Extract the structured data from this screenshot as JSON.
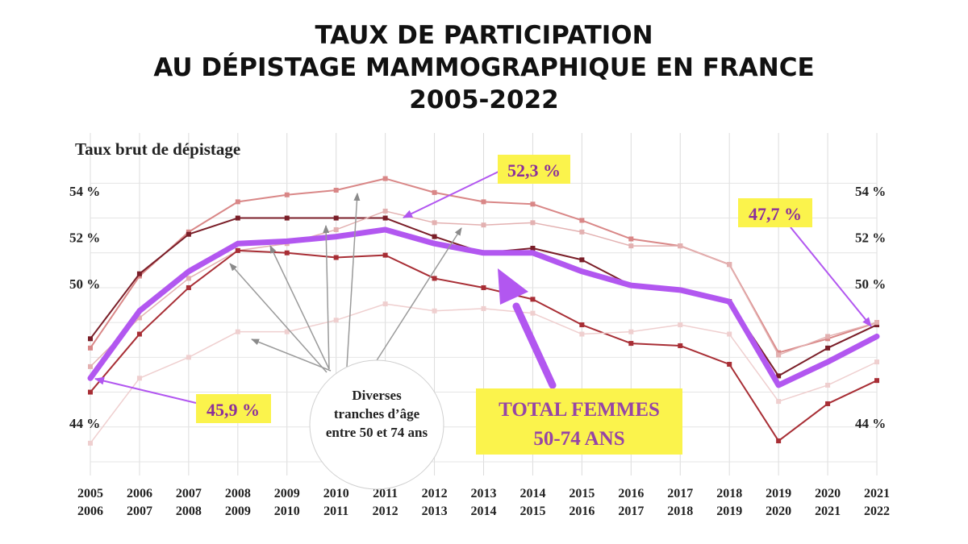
{
  "title": {
    "line1": "TAUX DE PARTICIPATION",
    "line2": "AU DÉPISTAGE MAMMOGRAPHIQUE EN FRANCE",
    "line3": "2005-2022"
  },
  "chart_data": {
    "type": "line",
    "ylabel": "Taux brut de dépistage",
    "yticks_left": [
      "54 %",
      "52 %",
      "50 %",
      "44 %"
    ],
    "yticks_right": [
      "54 %",
      "52 %",
      "50 %",
      "44 %"
    ],
    "ytick_values": [
      54,
      52,
      50,
      44
    ],
    "ylim": [
      42.5,
      55.5
    ],
    "categories": [
      [
        "2005",
        "2006"
      ],
      [
        "2006",
        "2007"
      ],
      [
        "2007",
        "2008"
      ],
      [
        "2008",
        "2009"
      ],
      [
        "2009",
        "2010"
      ],
      [
        "2010",
        "2011"
      ],
      [
        "2011",
        "2012"
      ],
      [
        "2012",
        "2013"
      ],
      [
        "2013",
        "2014"
      ],
      [
        "2014",
        "2015"
      ],
      [
        "2015",
        "2016"
      ],
      [
        "2016",
        "2017"
      ],
      [
        "2017",
        "2018"
      ],
      [
        "2018",
        "2019"
      ],
      [
        "2019",
        "2020"
      ],
      [
        "2020",
        "2021"
      ],
      [
        "2021",
        "2022"
      ]
    ],
    "grid": true,
    "series": [
      {
        "color": "#d98787",
        "width": 2,
        "values": [
          47.2,
          50.3,
          52.2,
          53.5,
          53.8,
          54.0,
          54.5,
          53.9,
          53.5,
          53.4,
          52.7,
          51.9,
          51.6,
          50.8,
          47.0,
          47.6,
          48.3
        ]
      },
      {
        "color": "#7a1e28",
        "width": 2,
        "values": [
          47.6,
          50.4,
          52.1,
          52.8,
          52.8,
          52.8,
          52.8,
          52.0,
          51.3,
          51.5,
          51.0,
          49.9,
          49.7,
          49.2,
          46.0,
          47.2,
          48.2
        ]
      },
      {
        "color": "#e3b1b1",
        "width": 1.5,
        "values": [
          46.4,
          48.5,
          50.2,
          51.4,
          51.7,
          52.3,
          53.1,
          52.6,
          52.5,
          52.6,
          52.2,
          51.6,
          51.6,
          50.8,
          46.9,
          47.7,
          48.3
        ]
      },
      {
        "color": "#a82e35",
        "width": 2,
        "values": [
          45.3,
          47.8,
          49.8,
          51.4,
          51.3,
          51.1,
          51.2,
          50.2,
          49.8,
          49.3,
          48.2,
          47.4,
          47.3,
          46.5,
          43.2,
          44.8,
          45.8
        ]
      },
      {
        "color": "#efcfcf",
        "width": 1.5,
        "values": [
          43.1,
          45.9,
          46.8,
          47.9,
          47.9,
          48.4,
          49.1,
          48.8,
          48.9,
          48.7,
          47.8,
          47.9,
          48.2,
          47.8,
          44.9,
          45.6,
          46.6
        ]
      },
      {
        "name": "TOTAL FEMMES 50-74 ANS",
        "color": "#b257f0",
        "width": 7,
        "values": [
          45.9,
          48.8,
          50.5,
          51.7,
          51.8,
          52.0,
          52.3,
          51.7,
          51.3,
          51.3,
          50.5,
          49.9,
          49.7,
          49.2,
          45.6,
          46.6,
          47.7
        ]
      }
    ],
    "annotations": [
      {
        "text": "52,3 %",
        "target_index": 6
      },
      {
        "text": "47,7 %",
        "target_index": 16
      },
      {
        "text": "45,9 %",
        "target_index": 0
      },
      {
        "text": "TOTAL FEMMES",
        "text2": "50-74 ANS"
      },
      {
        "text": "Diverses",
        "text2": "tranches d’âge",
        "text3": "entre 50 et 74 ans"
      }
    ]
  }
}
